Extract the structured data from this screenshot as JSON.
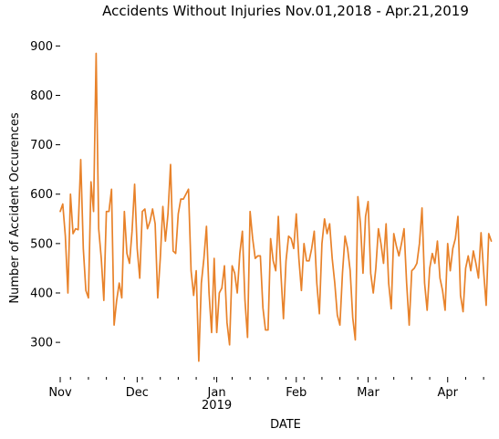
{
  "chart_data": {
    "type": "line",
    "title": "Accidents Without Injuries Nov.01,2018 - Apr.21,2019",
    "xlabel": "DATE",
    "ylabel": "Number of Accident Occurences",
    "ylim": [
      230,
      945
    ],
    "yticks": [
      300,
      400,
      500,
      600,
      700,
      800,
      900
    ],
    "grid": false,
    "legend": "none",
    "x_range": [
      "2018-11-01",
      "2019-04-21"
    ],
    "x_year_label": "2019",
    "xticks": [
      {
        "label": "Nov",
        "date": "2018-11-01"
      },
      {
        "label": "Dec",
        "date": "2018-12-01"
      },
      {
        "label": "Jan",
        "date": "2019-01-01"
      },
      {
        "label": "Feb",
        "date": "2019-02-01"
      },
      {
        "label": "Mar",
        "date": "2019-03-01"
      },
      {
        "label": "Apr",
        "date": "2019-04-01"
      }
    ],
    "series": [
      {
        "color": "#e8822a",
        "start_date": "2018-11-01",
        "values": [
          565,
          580,
          515,
          400,
          600,
          520,
          530,
          528,
          670,
          490,
          405,
          390,
          625,
          565,
          885,
          530,
          470,
          385,
          565,
          565,
          610,
          335,
          385,
          420,
          390,
          565,
          480,
          460,
          525,
          620,
          490,
          430,
          565,
          570,
          530,
          545,
          570,
          540,
          390,
          470,
          575,
          505,
          560,
          660,
          485,
          480,
          560,
          590,
          590,
          600,
          610,
          445,
          395,
          445,
          262,
          420,
          470,
          535,
          400,
          320,
          470,
          320,
          400,
          410,
          455,
          340,
          295,
          455,
          440,
          400,
          480,
          525,
          385,
          310,
          565,
          510,
          470,
          475,
          475,
          370,
          325,
          325,
          510,
          465,
          445,
          555,
          440,
          348,
          465,
          515,
          510,
          490,
          560,
          470,
          405,
          500,
          465,
          465,
          490,
          525,
          420,
          358,
          500,
          550,
          520,
          540,
          470,
          420,
          355,
          335,
          440,
          515,
          490,
          445,
          350,
          305,
          595,
          540,
          440,
          555,
          585,
          440,
          400,
          450,
          530,
          500,
          460,
          540,
          420,
          368,
          520,
          495,
          475,
          500,
          530,
          420,
          335,
          445,
          450,
          460,
          500,
          572,
          420,
          365,
          450,
          480,
          460,
          505,
          430,
          405,
          365,
          500,
          445,
          490,
          510,
          555,
          395,
          362,
          450,
          475,
          445,
          485,
          460,
          430,
          522,
          445,
          375,
          520,
          505
        ]
      }
    ]
  }
}
